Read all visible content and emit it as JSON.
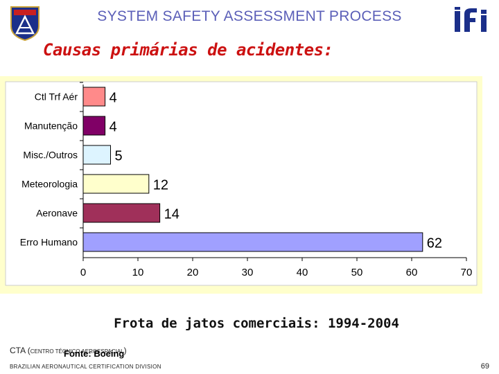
{
  "header": {
    "title": "SYSTEM SAFETY ASSESSMENT PROCESS",
    "left_logo_icon": "cta-shield-logo-icon",
    "right_logo_icon": "ifi-logo-icon"
  },
  "slide": {
    "subtitle": "Causas primárias de acidentes:",
    "caption": "Frota de jatos comerciais: 1994-2004"
  },
  "footer": {
    "org_prefix": "CTA (",
    "org_smallcaps": "CENTRO TÉCNICO AEROESPACIAL",
    "org_suffix": ")",
    "source": "Fonte: Boeing",
    "division": "BRAZILIAN AERONAUTICAL CERTIFICATION DIVISION",
    "page_number": "69"
  },
  "chart_data": {
    "type": "bar",
    "orientation": "horizontal",
    "title": "",
    "xlabel": "",
    "ylabel": "",
    "categories": [
      "Ctl Trf Aér",
      "Manutenção",
      "Misc./Outros",
      "Meteorologia",
      "Aeronave",
      "Erro Humano"
    ],
    "values": [
      4,
      4,
      5,
      12,
      14,
      62
    ],
    "value_labels": [
      "4",
      "4",
      "5",
      "12",
      "14",
      "62"
    ],
    "bar_colors": [
      "#ff8a8a",
      "#800066",
      "#ddf4ff",
      "#ffffcc",
      "#a0305a",
      "#a0a0ff"
    ],
    "xlim": [
      0,
      70
    ],
    "xticks": [
      "0",
      "10",
      "20",
      "30",
      "40",
      "50",
      "60",
      "70"
    ],
    "grid": false,
    "legend": "none",
    "background": "#ffffcc",
    "plot_background": "#ffffff"
  }
}
